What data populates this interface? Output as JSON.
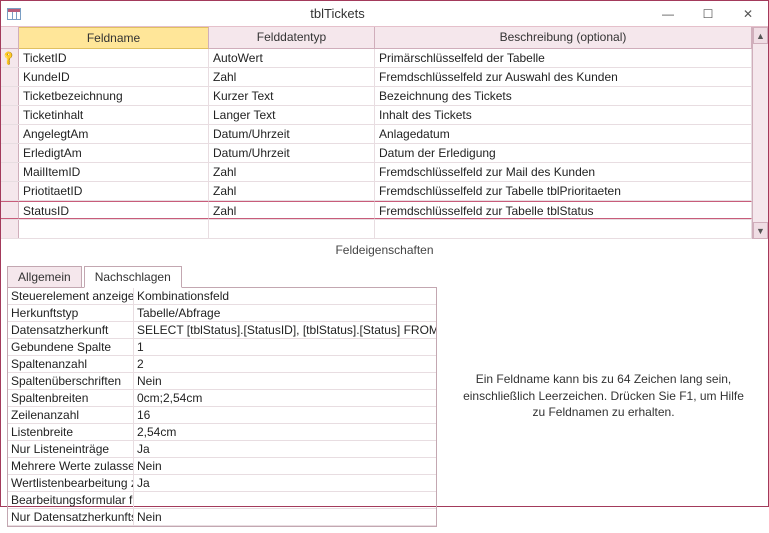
{
  "window": {
    "title": "tblTickets"
  },
  "columns": {
    "field": "Feldname",
    "datatype": "Felddatentyp",
    "desc": "Beschreibung (optional)"
  },
  "rows": [
    {
      "pk": true,
      "sel": false,
      "field": "TicketID",
      "type": "AutoWert",
      "desc": "Primärschlüsselfeld der Tabelle"
    },
    {
      "pk": false,
      "sel": false,
      "field": "KundeID",
      "type": "Zahl",
      "desc": "Fremdschlüsselfeld zur Auswahl des Kunden"
    },
    {
      "pk": false,
      "sel": false,
      "field": "Ticketbezeichnung",
      "type": "Kurzer Text",
      "desc": "Bezeichnung des Tickets"
    },
    {
      "pk": false,
      "sel": false,
      "field": "Ticketinhalt",
      "type": "Langer Text",
      "desc": "Inhalt des Tickets"
    },
    {
      "pk": false,
      "sel": false,
      "field": "AngelegtAm",
      "type": "Datum/Uhrzeit",
      "desc": "Anlagedatum"
    },
    {
      "pk": false,
      "sel": false,
      "field": "ErledigtAm",
      "type": "Datum/Uhrzeit",
      "desc": "Datum der Erledigung"
    },
    {
      "pk": false,
      "sel": false,
      "field": "MailItemID",
      "type": "Zahl",
      "desc": "Fremdschlüsselfeld zur Mail des Kunden"
    },
    {
      "pk": false,
      "sel": false,
      "field": "PriotitaetID",
      "type": "Zahl",
      "desc": "Fremdschlüsselfeld zur Tabelle tblPrioritaeten"
    },
    {
      "pk": false,
      "sel": true,
      "field": "StatusID",
      "type": "Zahl",
      "desc": "Fremdschlüsselfeld zur Tabelle tblStatus"
    },
    {
      "pk": false,
      "sel": false,
      "field": "",
      "type": "",
      "desc": ""
    }
  ],
  "sectionLabel": "Feldeigenschaften",
  "tabs": {
    "general": "Allgemein",
    "lookup": "Nachschlagen"
  },
  "props": [
    {
      "k": "Steuerelement anzeigen",
      "v": "Kombinationsfeld"
    },
    {
      "k": "Herkunftstyp",
      "v": "Tabelle/Abfrage"
    },
    {
      "k": "Datensatzherkunft",
      "v": "SELECT [tblStatus].[StatusID], [tblStatus].[Status] FROM tblStatus;"
    },
    {
      "k": "Gebundene Spalte",
      "v": "1"
    },
    {
      "k": "Spaltenanzahl",
      "v": "2"
    },
    {
      "k": "Spaltenüberschriften",
      "v": "Nein"
    },
    {
      "k": "Spaltenbreiten",
      "v": "0cm;2,54cm"
    },
    {
      "k": "Zeilenanzahl",
      "v": "16"
    },
    {
      "k": "Listenbreite",
      "v": "2,54cm"
    },
    {
      "k": "Nur Listeneinträge",
      "v": "Ja"
    },
    {
      "k": "Mehrere Werte zulassen",
      "v": "Nein"
    },
    {
      "k": "Wertlistenbearbeitung zulassen",
      "v": "Ja"
    },
    {
      "k": "Bearbeitungsformular für Listenelemente",
      "v": ""
    },
    {
      "k": "Nur Datensatzherkunftswerte anzeigen",
      "v": "Nein"
    }
  ],
  "helpText": "Ein Feldname kann bis zu 64 Zeichen lang sein, einschließlich Leerzeichen. Drücken Sie F1, um Hilfe zu Feldnamen zu erhalten.",
  "winbtns": {
    "min": "—",
    "max": "☐",
    "close": "✕"
  },
  "scroll": {
    "up": "▲",
    "down": "▼"
  }
}
